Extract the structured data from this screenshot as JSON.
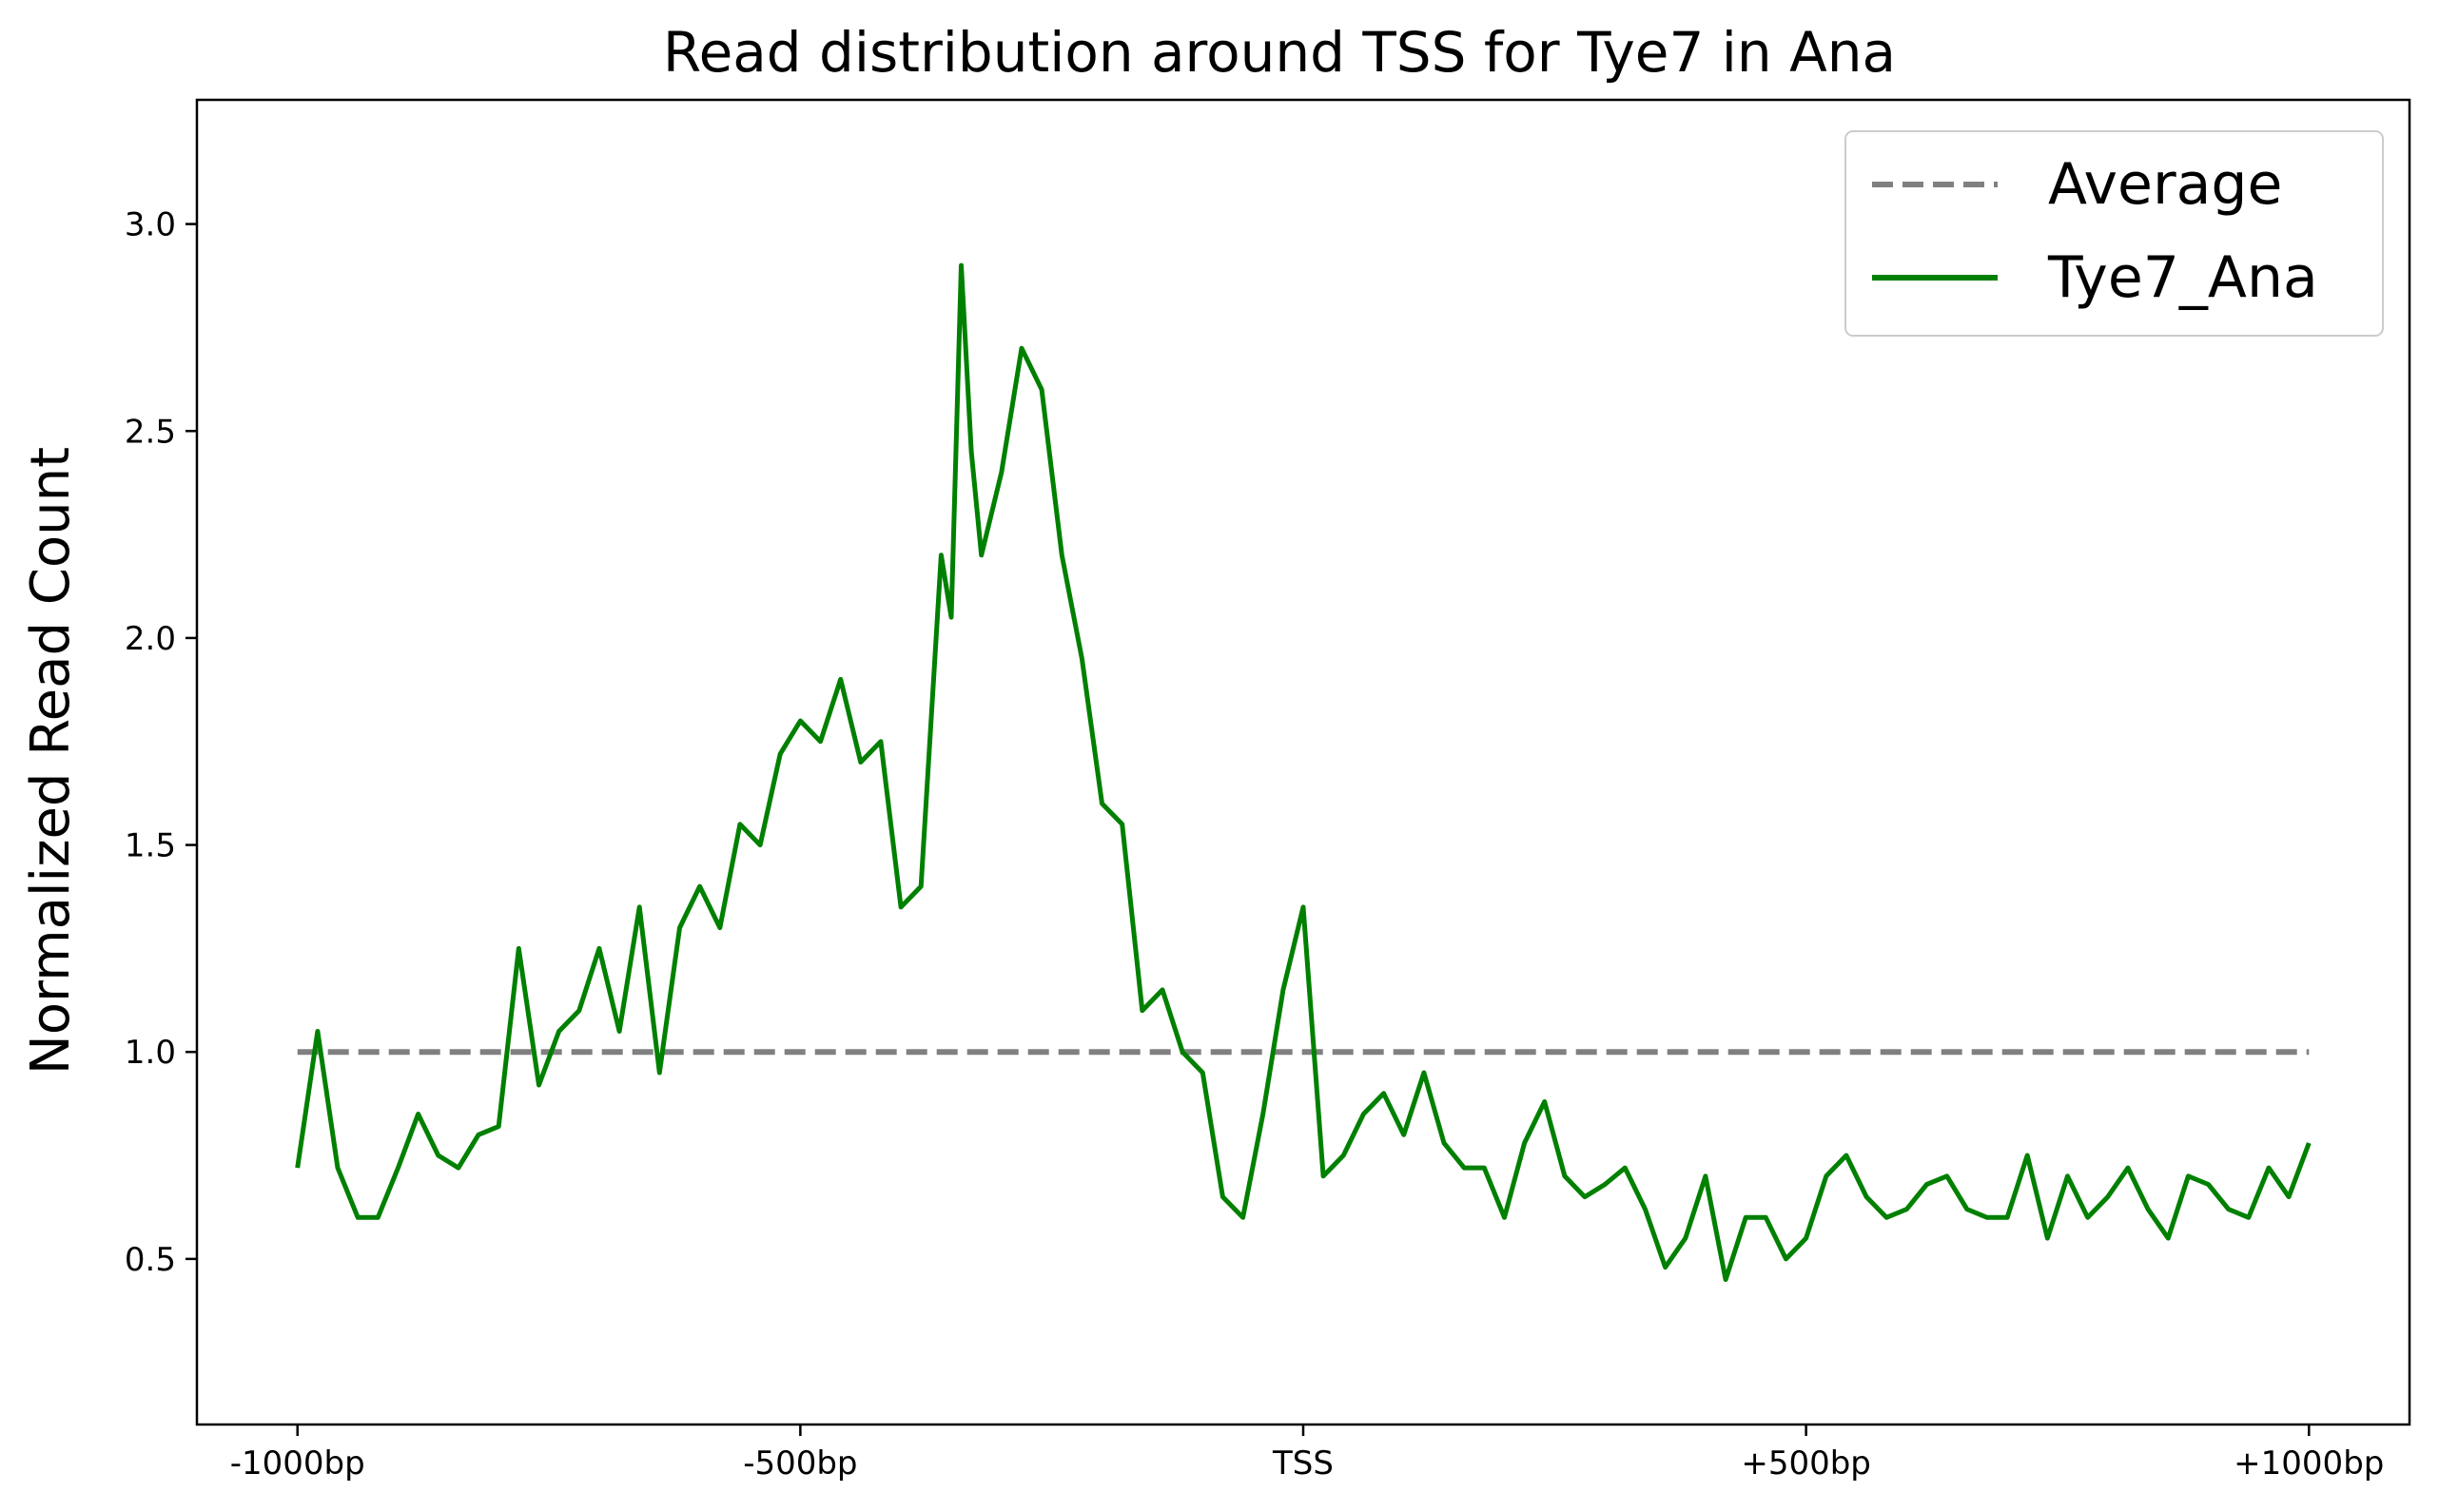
{
  "chart_data": {
    "type": "line",
    "title": "Read distribution around TSS for Tye7 in Ana",
    "xlabel": "",
    "ylabel": "Normalized Read Count",
    "x_ticks": [
      {
        "label": "-1000bp",
        "value": -1000
      },
      {
        "label": "-500bp",
        "value": -500
      },
      {
        "label": "TSS",
        "value": 0
      },
      {
        "label": "+500bp",
        "value": 500
      },
      {
        "label": "+1000bp",
        "value": 1000
      }
    ],
    "y_ticks": [
      0.5,
      1.0,
      1.5,
      2.0,
      2.5,
      3.0
    ],
    "y_tick_labels": [
      "0.5",
      "1.0",
      "1.5",
      "2.0",
      "2.5",
      "3.0"
    ],
    "xlim": [
      -1100,
      1100
    ],
    "ylim": [
      0.1,
      3.3
    ],
    "grid": false,
    "legend_position": "top-right",
    "series": [
      {
        "name": "Average",
        "style": "dashed",
        "color": "#808080",
        "x": [
          -1000,
          1000
        ],
        "values": [
          1.0,
          1.0
        ]
      },
      {
        "name": "Tye7_Ana",
        "style": "solid",
        "color": "#008000",
        "x": [
          -1000,
          -980,
          -960,
          -940,
          -920,
          -900,
          -880,
          -860,
          -840,
          -820,
          -800,
          -780,
          -760,
          -740,
          -720,
          -700,
          -680,
          -660,
          -640,
          -620,
          -600,
          -580,
          -560,
          -540,
          -520,
          -500,
          -480,
          -460,
          -440,
          -420,
          -400,
          -380,
          -360,
          -350,
          -340,
          -330,
          -320,
          -300,
          -280,
          -260,
          -240,
          -220,
          -200,
          -180,
          -160,
          -140,
          -120,
          -100,
          -80,
          -60,
          -40,
          -20,
          0,
          20,
          40,
          60,
          80,
          100,
          120,
          140,
          160,
          180,
          200,
          220,
          240,
          260,
          280,
          300,
          320,
          340,
          360,
          380,
          400,
          420,
          440,
          460,
          480,
          500,
          520,
          540,
          560,
          580,
          600,
          620,
          640,
          660,
          680,
          700,
          720,
          740,
          760,
          780,
          800,
          820,
          840,
          860,
          880,
          900,
          920,
          940,
          960,
          980,
          1000
        ],
        "values": [
          0.72,
          1.05,
          0.72,
          0.6,
          0.6,
          0.72,
          0.85,
          0.75,
          0.72,
          0.8,
          0.82,
          1.25,
          0.92,
          1.05,
          1.1,
          1.25,
          1.05,
          1.35,
          0.95,
          1.3,
          1.4,
          1.3,
          1.55,
          1.5,
          1.72,
          1.8,
          1.75,
          1.9,
          1.7,
          1.75,
          1.35,
          1.4,
          2.2,
          2.05,
          2.9,
          2.45,
          2.2,
          2.4,
          2.7,
          2.6,
          2.2,
          1.95,
          1.6,
          1.55,
          1.1,
          1.15,
          1.0,
          0.95,
          0.65,
          0.6,
          0.85,
          1.15,
          1.35,
          0.7,
          0.75,
          0.85,
          0.9,
          0.8,
          0.95,
          0.78,
          0.72,
          0.72,
          0.6,
          0.78,
          0.88,
          0.7,
          0.65,
          0.68,
          0.72,
          0.62,
          0.48,
          0.55,
          0.7,
          0.45,
          0.6,
          0.6,
          0.5,
          0.55,
          0.7,
          0.75,
          0.65,
          0.6,
          0.62,
          0.68,
          0.7,
          0.62,
          0.6,
          0.6,
          0.75,
          0.55,
          0.7,
          0.6,
          0.65,
          0.72,
          0.62,
          0.55,
          0.7,
          0.68,
          0.62,
          0.6,
          0.72,
          0.65,
          0.78
        ]
      }
    ]
  }
}
